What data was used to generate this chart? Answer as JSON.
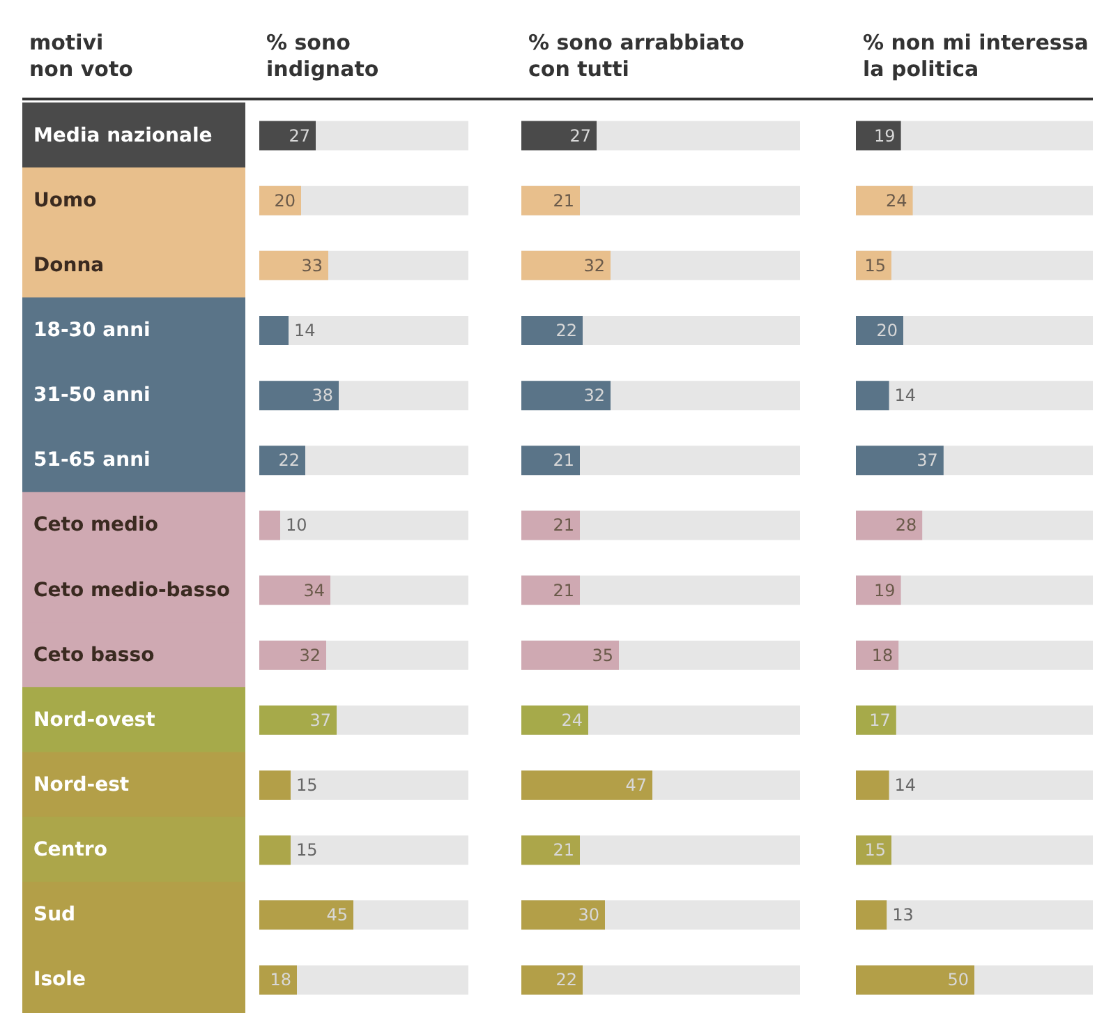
{
  "chart_data": [
    {
      "type": "bar",
      "orientation": "horizontal",
      "title": "% sono\nindignato",
      "ylabel": "motivi\nnon voto",
      "categories": [
        "Media nazionale",
        "Uomo",
        "Donna",
        "18-30 anni",
        "31-50 anni",
        "51-65 anni",
        "Ceto medio",
        "Ceto medio-basso",
        "Ceto basso",
        "Nord-ovest",
        "Nord-est",
        "Centro",
        "Sud",
        "Isole"
      ],
      "values": [
        27,
        20,
        33,
        14,
        38,
        22,
        10,
        34,
        32,
        37,
        15,
        15,
        45,
        18
      ],
      "colors": [
        "#4a4a4a",
        "#e8bf8c",
        "#e8bf8c",
        "#5a7488",
        "#5a7488",
        "#5a7488",
        "#cfa9b2",
        "#cfa9b2",
        "#cfa9b2",
        "#a6aa4a",
        "#b39f48",
        "#aca64a",
        "#b39f48",
        "#b39f48"
      ],
      "xlim": [
        0,
        100
      ],
      "tick_labels": "y",
      "data_labels": true
    },
    {
      "type": "bar",
      "orientation": "horizontal",
      "title": "% sono arrabbiato\ncon tutti",
      "categories": [
        null,
        null,
        null,
        null,
        null,
        null,
        null,
        null,
        null,
        null,
        null,
        null,
        null,
        null
      ],
      "values": [
        27,
        21,
        32,
        22,
        32,
        21,
        21,
        21,
        35,
        24,
        47,
        21,
        30,
        22
      ],
      "colors": [
        "#4a4a4a",
        "#e8bf8c",
        "#e8bf8c",
        "#5a7488",
        "#5a7488",
        "#5a7488",
        "#cfa9b2",
        "#cfa9b2",
        "#cfa9b2",
        "#a6aa4a",
        "#b39f48",
        "#aca64a",
        "#b39f48",
        "#b39f48"
      ],
      "xlim": [
        0,
        100
      ],
      "tick_labels": false,
      "data_labels": true
    },
    {
      "type": "bar",
      "orientation": "horizontal",
      "title": "% non mi interessa\nla politica",
      "categories": [
        null,
        null,
        null,
        null,
        null,
        null,
        null,
        null,
        null,
        null,
        null,
        null,
        null,
        null
      ],
      "values": [
        19,
        24,
        15,
        20,
        14,
        37,
        28,
        19,
        18,
        17,
        14,
        15,
        13,
        50
      ],
      "colors": [
        "#4a4a4a",
        "#e8bf8c",
        "#e8bf8c",
        "#5a7488",
        "#5a7488",
        "#5a7488",
        "#cfa9b2",
        "#cfa9b2",
        "#cfa9b2",
        "#a6aa4a",
        "#b39f48",
        "#aca64a",
        "#b39f48",
        "#b39f48"
      ],
      "xlim": [
        0,
        100
      ],
      "tick_labels": false,
      "data_labels": true
    }
  ]
}
